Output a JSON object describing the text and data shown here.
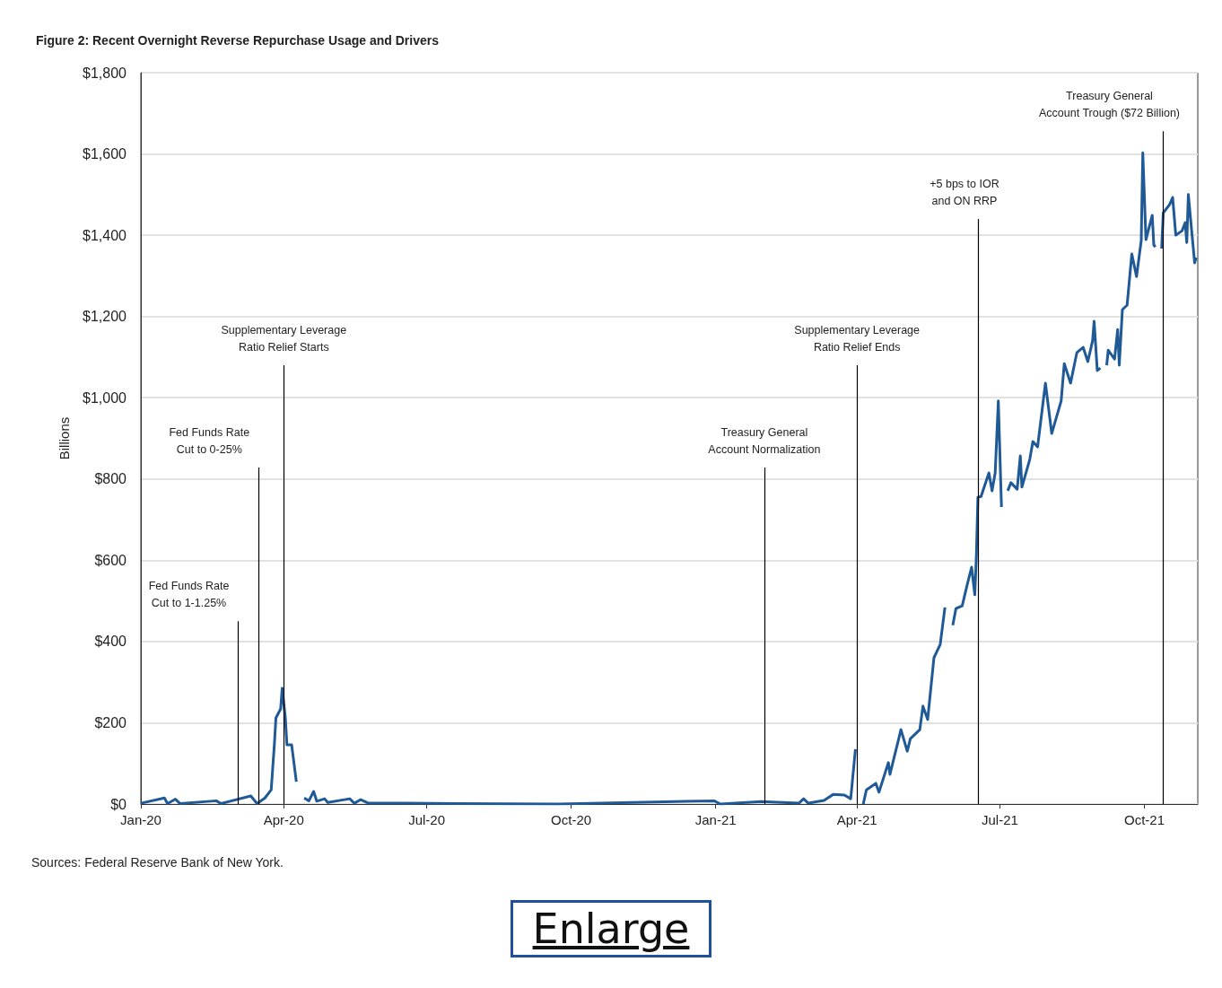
{
  "chart_data": {
    "type": "line",
    "title": "Figure 2: Recent Overnight Reverse Repurchase Usage and Drivers",
    "ylabel": "Billions",
    "annotations": [
      "Sources: Federal Reserve Bank of New York.",
      "Enlarge"
    ],
    "x": [
      "2020-01-01",
      "2020-01-16",
      "2020-01-18",
      "2020-01-23",
      "2020-01-26",
      "2020-02-18",
      "2020-02-21",
      "2020-03-11",
      "2020-03-15",
      "2020-03-20",
      "2020-03-24",
      "2020-03-26",
      "2020-03-27",
      "2020-03-30",
      "2020-03-31",
      "2020-04-02",
      "2020-04-03",
      "2020-04-06",
      "2020-04-09",
      "2020-04-11",
      "2020-04-14",
      "2020-04-17",
      "2020-04-20",
      "2020-04-22",
      "2020-04-27",
      "2020-04-29",
      "2020-05-13",
      "2020-05-16",
      "2020-05-20",
      "2020-05-25",
      "2020-06-17",
      "2020-09-23",
      "2020-12-31",
      "2021-01-04",
      "2021-01-30",
      "2021-02-23",
      "2021-02-26",
      "2021-03-01",
      "2021-03-11",
      "2021-03-17",
      "2021-03-24",
      "2021-03-28",
      "2021-03-31",
      "2021-04-02",
      "2021-04-05",
      "2021-04-07",
      "2021-04-13",
      "2021-04-15",
      "2021-04-21",
      "2021-04-22",
      "2021-04-29",
      "2021-05-03",
      "2021-05-05",
      "2021-05-11",
      "2021-05-13",
      "2021-05-16",
      "2021-05-20",
      "2021-05-24",
      "2021-05-27",
      "2021-05-29",
      "2021-06-01",
      "2021-06-03",
      "2021-06-07",
      "2021-06-10",
      "2021-06-13",
      "2021-06-15",
      "2021-06-16",
      "2021-06-17",
      "2021-06-19",
      "2021-06-24",
      "2021-06-26",
      "2021-06-28",
      "2021-06-30",
      "2021-07-02",
      "2021-07-04",
      "2021-07-06",
      "2021-07-08",
      "2021-07-12",
      "2021-07-14",
      "2021-07-15",
      "2021-07-20",
      "2021-07-22",
      "2021-07-25",
      "2021-07-30",
      "2021-08-03",
      "2021-08-09",
      "2021-08-11",
      "2021-08-15",
      "2021-08-19",
      "2021-08-23",
      "2021-08-26",
      "2021-08-29",
      "2021-08-30",
      "2021-09-01",
      "2021-09-03",
      "2021-09-05",
      "2021-09-07",
      "2021-09-08",
      "2021-09-12",
      "2021-09-14",
      "2021-09-15",
      "2021-09-17",
      "2021-09-20",
      "2021-09-23",
      "2021-09-26",
      "2021-09-29",
      "2021-09-30",
      "2021-10-02",
      "2021-10-06",
      "2021-10-07",
      "2021-10-08",
      "2021-10-10",
      "2021-10-12",
      "2021-10-13",
      "2021-10-17",
      "2021-10-19",
      "2021-10-21",
      "2021-10-25",
      "2021-10-27",
      "2021-10-28",
      "2021-10-29",
      "2021-11-02",
      "2021-11-03"
    ],
    "series": [
      {
        "color": "#1f5a96",
        "values": [
          2,
          15,
          1,
          12,
          1,
          8,
          1,
          20,
          1,
          15,
          35,
          146,
          212,
          234,
          285,
          212,
          146,
          146,
          55,
          null,
          15,
          8,
          31,
          7,
          13,
          4,
          13,
          2,
          11,
          2,
          2,
          0,
          8,
          0,
          6,
          2,
          13,
          2,
          9,
          24,
          22,
          13,
          135,
          null,
          0,
          35,
          51,
          29,
          102,
          73,
          183,
          130,
          161,
          183,
          241,
          208,
          360,
          393,
          484,
          null,
          440,
          481,
          488,
          537,
          583,
          515,
          609,
          755,
          757,
          815,
          771,
          815,
          992,
          731,
          null,
          771,
          791,
          775,
          857,
          780,
          848,
          892,
          879,
          1036,
          912,
          992,
          1084,
          1036,
          1111,
          1124,
          1089,
          1140,
          1188,
          1067,
          1073,
          null,
          1080,
          1117,
          1095,
          1168,
          1080,
          1217,
          1228,
          1354,
          1298,
          1387,
          1603,
          1389,
          1449,
          1376,
          1371,
          null,
          1367,
          1455,
          1475,
          1493,
          1400,
          1411,
          1431,
          1382,
          1500,
          1332,
          1345
        ]
      }
    ],
    "xlim": [
      "2020-01-01",
      "2021-11-04"
    ],
    "xticks": [
      {
        "value": "2020-01-01",
        "label": "Jan-20"
      },
      {
        "value": "2020-04-01",
        "label": "Apr-20"
      },
      {
        "value": "2020-07-01",
        "label": "Jul-20"
      },
      {
        "value": "2020-10-01",
        "label": "Oct-20"
      },
      {
        "value": "2021-01-01",
        "label": "Jan-21"
      },
      {
        "value": "2021-04-01",
        "label": "Apr-21"
      },
      {
        "value": "2021-07-01",
        "label": "Jul-21"
      },
      {
        "value": "2021-10-01",
        "label": "Oct-21"
      }
    ],
    "ylim": [
      0,
      1800
    ],
    "yticks": [
      {
        "value": 0,
        "label": "$0"
      },
      {
        "value": 200,
        "label": "$200"
      },
      {
        "value": 400,
        "label": "$400"
      },
      {
        "value": 600,
        "label": "$600"
      },
      {
        "value": 800,
        "label": "$800"
      },
      {
        "value": 1000,
        "label": "$1,000"
      },
      {
        "value": 1200,
        "label": "$1,200"
      },
      {
        "value": 1400,
        "label": "$1,400"
      },
      {
        "value": 1600,
        "label": "$1,600"
      },
      {
        "value": 1800,
        "label": "$1,800"
      }
    ],
    "grid": "y",
    "marker": "none",
    "line_style": "solid",
    "ref_lines": [
      {
        "axis": "x",
        "value": "2020-03-03",
        "label": "Fed Funds Rate\nCut to 1-1.25%",
        "color": "#000000"
      },
      {
        "axis": "x",
        "value": "2020-03-16",
        "label": "Fed Funds Rate\nCut to 0-25%",
        "color": "#000000"
      },
      {
        "axis": "x",
        "value": "2020-04-01",
        "label": "Supplementary Leverage\nRatio Relief Starts",
        "color": "#000000"
      },
      {
        "axis": "x",
        "value": "2021-02-01",
        "label": "Treasury General\nAccount Normalization",
        "color": "#000000"
      },
      {
        "axis": "x",
        "value": "2021-04-01",
        "label": "Supplementary Leverage\nRatio Relief Ends",
        "color": "#000000"
      },
      {
        "axis": "x",
        "value": "2021-06-17",
        "label": "+5 bps to IOR\nand ON RRP",
        "color": "#000000"
      },
      {
        "axis": "x",
        "value": "2021-10-13",
        "label": "Treasury General\nAccount Trough ($72 Billion)",
        "color": "#000000"
      }
    ]
  }
}
